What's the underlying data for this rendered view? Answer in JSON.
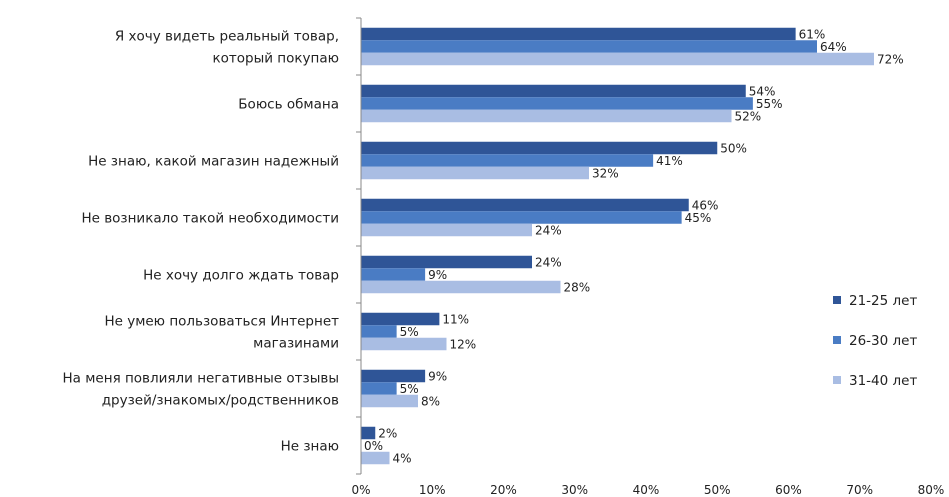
{
  "chart_data": {
    "type": "bar",
    "orientation": "horizontal",
    "title": "",
    "xlabel": "",
    "ylabel": "",
    "xlim": [
      0,
      80
    ],
    "x_ticks": [
      "0%",
      "10%",
      "20%",
      "30%",
      "40%",
      "50%",
      "60%",
      "70%",
      "80%"
    ],
    "grid": false,
    "legend_position": "right",
    "categories": [
      [
        "Я хочу видеть реальный товар,",
        "который покупаю"
      ],
      [
        "Боюсь обмана"
      ],
      [
        "Не знаю, какой магазин надежный"
      ],
      [
        "Не возникало такой необходимости"
      ],
      [
        "Не хочу долго ждать товар"
      ],
      [
        "Не умею пользоваться Интернет",
        "магазинами"
      ],
      [
        "На меня повлияли негативные отзывы",
        "друзей/знакомых/родственников"
      ],
      [
        "Не знаю"
      ]
    ],
    "series": [
      {
        "name": "21-25 лет",
        "color": "#2f5597",
        "values": [
          61,
          54,
          50,
          46,
          24,
          11,
          9,
          2
        ],
        "labels": [
          "61%",
          "54%",
          "50%",
          "46%",
          "24%",
          "11%",
          "9%",
          "2%"
        ]
      },
      {
        "name": "26-30 лет",
        "color": "#4a7cc4",
        "values": [
          64,
          55,
          41,
          45,
          9,
          5,
          5,
          0
        ],
        "labels": [
          "64%",
          "55%",
          "41%",
          "45%",
          "9%",
          "5%",
          "5%",
          "0%"
        ]
      },
      {
        "name": "31-40 лет",
        "color": "#a9bde3",
        "values": [
          72,
          52,
          32,
          24,
          28,
          12,
          8,
          4
        ],
        "labels": [
          "72%",
          "52%",
          "32%",
          "24%",
          "28%",
          "12%",
          "8%",
          "4%"
        ]
      }
    ]
  }
}
